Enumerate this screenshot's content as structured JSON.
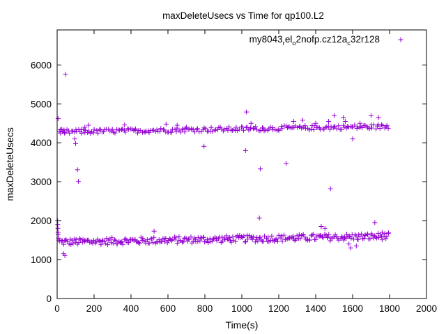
{
  "chart_data": {
    "type": "scatter",
    "title": "maxDeleteUsecs vs Time for qp100.L2",
    "xlabel": "Time(s)",
    "ylabel": "maxDeleteUsecs",
    "xlim": [
      0,
      2000
    ],
    "ylim": [
      0,
      6900
    ],
    "xticks": [
      0,
      200,
      400,
      600,
      800,
      1000,
      1200,
      1400,
      1600,
      1800,
      2000
    ],
    "yticks": [
      0,
      1000,
      2000,
      3000,
      4000,
      5000,
      6000
    ],
    "grid": false,
    "legend_position": "top-right",
    "series": [
      {
        "name": "my8043_rel_o2nofp.cz12a_c32r128",
        "legend_parts": [
          {
            "t": "my8043",
            "sub": false
          },
          {
            "t": "r",
            "sub": true
          },
          {
            "t": "el",
            "sub": false
          },
          {
            "t": "o",
            "sub": true
          },
          {
            "t": "2nofp.cz12a",
            "sub": false
          },
          {
            "t": "c",
            "sub": true
          },
          {
            "t": "32r128",
            "sub": false
          }
        ],
        "color": "#9400d3",
        "marker": "plus",
        "bands": [
          {
            "x_start": 15,
            "x_end": 1800,
            "step": 6,
            "center_start": 1450,
            "center_end": 1600,
            "spread": 90
          },
          {
            "x_start": 20,
            "x_end": 1800,
            "step": 8,
            "center_start": 4280,
            "center_end": 4420,
            "spread": 60
          }
        ],
        "points": [
          [
            2,
            2000
          ],
          [
            3,
            1900
          ],
          [
            4,
            1800
          ],
          [
            5,
            1700
          ],
          [
            6,
            1650
          ],
          [
            8,
            1550
          ],
          [
            10,
            1500
          ],
          [
            5,
            4620
          ],
          [
            12,
            4300
          ],
          [
            18,
            4250
          ],
          [
            25,
            4350
          ],
          [
            30,
            4280
          ],
          [
            40,
            4250
          ],
          [
            35,
            1150
          ],
          [
            42,
            1100
          ],
          [
            45,
            5760
          ],
          [
            95,
            4100
          ],
          [
            100,
            3980
          ],
          [
            110,
            3310
          ],
          [
            115,
            3010
          ],
          [
            130,
            4350
          ],
          [
            150,
            4400
          ],
          [
            170,
            4450
          ],
          [
            365,
            4460
          ],
          [
            525,
            1730
          ],
          [
            590,
            4480
          ],
          [
            650,
            4450
          ],
          [
            700,
            4400
          ],
          [
            795,
            3910
          ],
          [
            1020,
            3800
          ],
          [
            1025,
            4790
          ],
          [
            1050,
            4500
          ],
          [
            1095,
            2070
          ],
          [
            1100,
            3330
          ],
          [
            1240,
            3470
          ],
          [
            1280,
            4550
          ],
          [
            1330,
            4580
          ],
          [
            1400,
            4500
          ],
          [
            1430,
            1850
          ],
          [
            1450,
            1800
          ],
          [
            1470,
            4550
          ],
          [
            1480,
            2820
          ],
          [
            1500,
            4700
          ],
          [
            1550,
            4650
          ],
          [
            1560,
            4550
          ],
          [
            1580,
            1400
          ],
          [
            1590,
            1300
          ],
          [
            1600,
            4100
          ],
          [
            1620,
            1350
          ],
          [
            1640,
            4500
          ],
          [
            1700,
            4700
          ],
          [
            1720,
            1950
          ],
          [
            1740,
            4650
          ],
          [
            1760,
            1700
          ]
        ]
      }
    ]
  }
}
